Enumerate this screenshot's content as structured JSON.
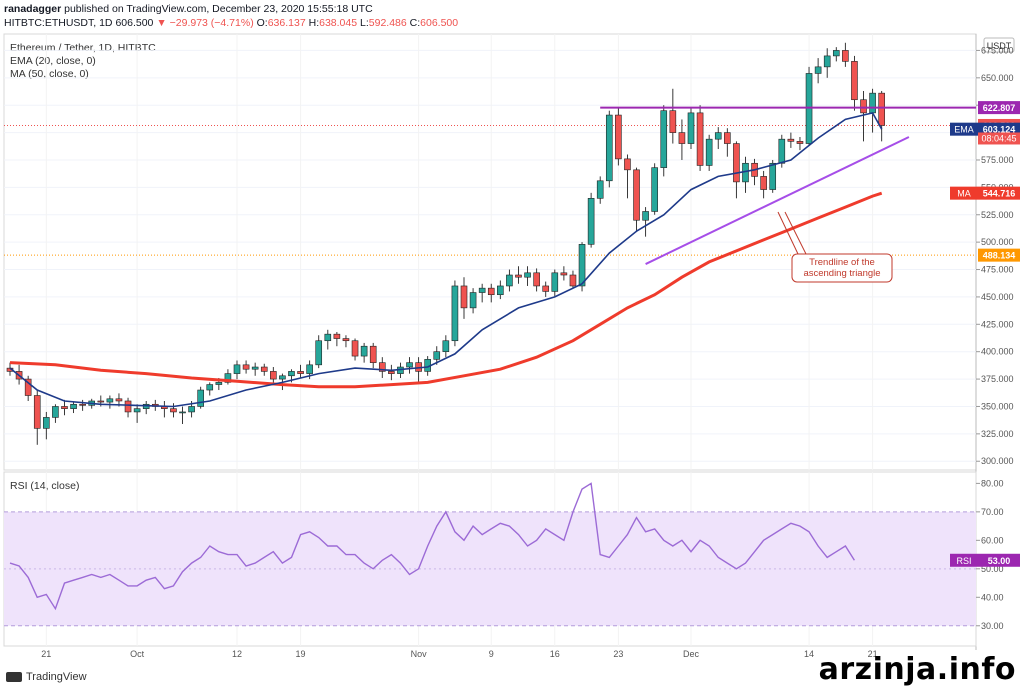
{
  "header": {
    "user": "ranadagger",
    "published": " published on TradingView.com, December 23, 2020 15:55:18 UTC",
    "symbol": "HITBTC:ETHUSDT, 1D",
    "price": "606.500",
    "change": "▼ −29.973 (−4.71%)",
    "ohlc": {
      "o_label": "O:",
      "o": "636.137",
      "h_label": "H:",
      "h": "638.045",
      "l_label": "L:",
      "l": "592.486",
      "c_label": "C:",
      "c": "606.500"
    }
  },
  "legend": {
    "title": "Ethereum / Tether, 1D, HITBTC",
    "ema": "EMA (20, close, 0)",
    "ma": "MA (50, close, 0)",
    "rsi": "RSI (14, close)"
  },
  "currency": "USDT",
  "annotation": "Trendline of the\nascending triangle",
  "watermark": "arzinja.info",
  "brand": "TradingView",
  "colors": {
    "up": "#26a69a",
    "down": "#ef5350",
    "ema": "#1e3a8a",
    "ma": "#ef3b2c",
    "resistance": "#9c27b0",
    "trend": "#a64ee8",
    "rsi": "#9c6bd6",
    "rsi_band": "#efe3fb"
  },
  "chart_data": [
    {
      "type": "candlestick",
      "y_ticks": [
        675,
        650,
        625,
        600,
        575,
        550,
        525,
        500,
        475,
        450,
        425,
        400,
        375,
        350,
        325,
        300
      ],
      "y_tick_labels": [
        "675.000",
        "650.000",
        "625.000",
        "600.000",
        "575.000",
        "550.000",
        "525.000",
        "500.000",
        "475.000",
        "450.000",
        "425.000",
        "400.000",
        "375.000",
        "350.000",
        "325.000",
        "300.000"
      ],
      "ylim": [
        292,
        690
      ],
      "x_tick_labels": [
        {
          "label": "21",
          "index": 4
        },
        {
          "label": "Oct",
          "index": 14
        },
        {
          "label": "12",
          "index": 25
        },
        {
          "label": "19",
          "index": 32
        },
        {
          "label": "Nov",
          "index": 45
        },
        {
          "label": "9",
          "index": 53
        },
        {
          "label": "16",
          "index": 60
        },
        {
          "label": "23",
          "index": 67
        },
        {
          "label": "Dec",
          "index": 75
        },
        {
          "label": "14",
          "index": 88
        },
        {
          "label": "21",
          "index": 95
        }
      ],
      "candles": [
        [
          385,
          390,
          378,
          382
        ],
        [
          382,
          388,
          370,
          375
        ],
        [
          375,
          378,
          355,
          360
        ],
        [
          360,
          365,
          315,
          330
        ],
        [
          330,
          345,
          320,
          340
        ],
        [
          340,
          352,
          335,
          350
        ],
        [
          350,
          356,
          342,
          348
        ],
        [
          348,
          354,
          344,
          352
        ],
        [
          352,
          356,
          346,
          351
        ],
        [
          351,
          357,
          348,
          355
        ],
        [
          355,
          360,
          350,
          354
        ],
        [
          354,
          360,
          348,
          357
        ],
        [
          357,
          362,
          350,
          355
        ],
        [
          355,
          358,
          340,
          345
        ],
        [
          345,
          352,
          335,
          348
        ],
        [
          348,
          355,
          343,
          352
        ],
        [
          352,
          356,
          346,
          350
        ],
        [
          350,
          355,
          340,
          348
        ],
        [
          348,
          353,
          340,
          345
        ],
        [
          345,
          350,
          334,
          345
        ],
        [
          345,
          355,
          340,
          350
        ],
        [
          350,
          368,
          348,
          365
        ],
        [
          365,
          372,
          360,
          370
        ],
        [
          370,
          376,
          365,
          372
        ],
        [
          372,
          384,
          370,
          380
        ],
        [
          380,
          392,
          375,
          388
        ],
        [
          388,
          392,
          380,
          384
        ],
        [
          384,
          390,
          378,
          386
        ],
        [
          386,
          389,
          378,
          382
        ],
        [
          382,
          386,
          370,
          375
        ],
        [
          375,
          380,
          365,
          378
        ],
        [
          378,
          384,
          372,
          382
        ],
        [
          382,
          388,
          376,
          380
        ],
        [
          380,
          392,
          375,
          388
        ],
        [
          388,
          415,
          385,
          410
        ],
        [
          410,
          420,
          402,
          416
        ],
        [
          416,
          418,
          405,
          412
        ],
        [
          412,
          415,
          404,
          410
        ],
        [
          410,
          412,
          392,
          396
        ],
        [
          396,
          408,
          390,
          405
        ],
        [
          405,
          408,
          385,
          390
        ],
        [
          390,
          395,
          376,
          382
        ],
        [
          382,
          388,
          374,
          380
        ],
        [
          380,
          390,
          376,
          386
        ],
        [
          386,
          395,
          380,
          390
        ],
        [
          390,
          395,
          372,
          382
        ],
        [
          382,
          396,
          378,
          393
        ],
        [
          393,
          405,
          388,
          400
        ],
        [
          400,
          415,
          395,
          410
        ],
        [
          410,
          465,
          405,
          460
        ],
        [
          460,
          468,
          430,
          440
        ],
        [
          440,
          458,
          435,
          454
        ],
        [
          454,
          462,
          445,
          458
        ],
        [
          458,
          462,
          445,
          452
        ],
        [
          452,
          465,
          448,
          460
        ],
        [
          460,
          475,
          455,
          470
        ],
        [
          470,
          478,
          462,
          468
        ],
        [
          468,
          478,
          460,
          472
        ],
        [
          472,
          476,
          455,
          460
        ],
        [
          460,
          464,
          450,
          455
        ],
        [
          455,
          475,
          450,
          472
        ],
        [
          472,
          478,
          465,
          470
        ],
        [
          470,
          474,
          458,
          460
        ],
        [
          460,
          500,
          455,
          498
        ],
        [
          498,
          545,
          495,
          540
        ],
        [
          540,
          560,
          535,
          556
        ],
        [
          556,
          620,
          550,
          616
        ],
        [
          616,
          622,
          570,
          576
        ],
        [
          576,
          580,
          540,
          566
        ],
        [
          566,
          568,
          510,
          520
        ],
        [
          520,
          532,
          505,
          528
        ],
        [
          528,
          572,
          525,
          568
        ],
        [
          568,
          625,
          560,
          620
        ],
        [
          620,
          640,
          590,
          600
        ],
        [
          600,
          612,
          575,
          590
        ],
        [
          590,
          622,
          585,
          618
        ],
        [
          618,
          625,
          565,
          570
        ],
        [
          570,
          598,
          565,
          594
        ],
        [
          594,
          605,
          585,
          600
        ],
        [
          600,
          604,
          578,
          590
        ],
        [
          590,
          592,
          540,
          555
        ],
        [
          555,
          578,
          545,
          572
        ],
        [
          572,
          576,
          552,
          560
        ],
        [
          560,
          565,
          540,
          548
        ],
        [
          548,
          575,
          545,
          572
        ],
        [
          572,
          598,
          568,
          594
        ],
        [
          594,
          600,
          586,
          592
        ],
        [
          592,
          596,
          584,
          590
        ],
        [
          590,
          660,
          588,
          654
        ],
        [
          654,
          668,
          645,
          660
        ],
        [
          660,
          677,
          650,
          670
        ],
        [
          670,
          678,
          665,
          675
        ],
        [
          675,
          682,
          660,
          665
        ],
        [
          665,
          670,
          620,
          630
        ],
        [
          630,
          638,
          592,
          618
        ],
        [
          618,
          640,
          600,
          636
        ],
        [
          636,
          638,
          592,
          606.5
        ]
      ],
      "ema_20": [
        [
          0,
          385
        ],
        [
          3,
          365
        ],
        [
          6,
          355
        ],
        [
          10,
          352
        ],
        [
          14,
          351
        ],
        [
          18,
          350
        ],
        [
          22,
          355
        ],
        [
          26,
          365
        ],
        [
          30,
          372
        ],
        [
          34,
          380
        ],
        [
          38,
          385
        ],
        [
          42,
          383
        ],
        [
          46,
          386
        ],
        [
          49,
          398
        ],
        [
          52,
          420
        ],
        [
          56,
          440
        ],
        [
          60,
          450
        ],
        [
          63,
          462
        ],
        [
          66,
          490
        ],
        [
          69,
          510
        ],
        [
          72,
          525
        ],
        [
          75,
          548
        ],
        [
          78,
          560
        ],
        [
          82,
          566
        ],
        [
          86,
          575
        ],
        [
          89,
          595
        ],
        [
          92,
          612
        ],
        [
          95,
          618
        ],
        [
          96,
          603.124
        ]
      ],
      "ma_50": [
        [
          0,
          390
        ],
        [
          5,
          388
        ],
        [
          10,
          383
        ],
        [
          15,
          380
        ],
        [
          20,
          376
        ],
        [
          25,
          373
        ],
        [
          30,
          370
        ],
        [
          34,
          368
        ],
        [
          38,
          368
        ],
        [
          42,
          370
        ],
        [
          46,
          372
        ],
        [
          50,
          378
        ],
        [
          54,
          384
        ],
        [
          58,
          395
        ],
        [
          62,
          410
        ],
        [
          65,
          425
        ],
        [
          68,
          440
        ],
        [
          71,
          452
        ],
        [
          74,
          468
        ],
        [
          77,
          482
        ],
        [
          80,
          492
        ],
        [
          83,
          502
        ],
        [
          86,
          512
        ],
        [
          89,
          522
        ],
        [
          92,
          532
        ],
        [
          95,
          542
        ],
        [
          96,
          544.716
        ]
      ],
      "price_labels": [
        {
          "value": 622.807,
          "label": "622.807",
          "bg": "#9c27b0"
        },
        {
          "value": 606.5,
          "label": "606.500",
          "bg": "#ef5350"
        },
        {
          "value": 603.124,
          "label": "603.124",
          "bg": "#1e3a8a",
          "tag": "EMA"
        },
        {
          "value": 544.716,
          "label": "544.716",
          "bg": "#ef3b2c",
          "tag": "MA"
        },
        {
          "value": 488.134,
          "label": "488.134",
          "bg": "#ff9800"
        }
      ],
      "countdown": "08:04:45",
      "resistance": {
        "value": 622.807,
        "from_index": 65,
        "to_index": 98
      },
      "trendline": {
        "from": [
          70,
          480
        ],
        "to": [
          99,
          596
        ]
      }
    },
    {
      "type": "line",
      "title": "RSI (14, close)",
      "ylim": [
        25,
        84
      ],
      "y_ticks": [
        80,
        70,
        60,
        50,
        40,
        30
      ],
      "y_tick_labels": [
        "80.00",
        "70.00",
        "60.00",
        "50.00",
        "40.00",
        "30.00"
      ],
      "band": [
        30,
        70
      ],
      "values": [
        52,
        51,
        47,
        40,
        41,
        36,
        45,
        46,
        47,
        48,
        47,
        48,
        46,
        44,
        44,
        46,
        47,
        43,
        44,
        49,
        52,
        54,
        58,
        56,
        55,
        55,
        51,
        52,
        54,
        56,
        52,
        54,
        62,
        63,
        61,
        58,
        58,
        55,
        55,
        52,
        50,
        53,
        55,
        52,
        48,
        50,
        58,
        65,
        70,
        63,
        60,
        65,
        62,
        64,
        66,
        65,
        62,
        58,
        60,
        64,
        62,
        60,
        70,
        78,
        80,
        55,
        54,
        58,
        62,
        68,
        63,
        64,
        60,
        58,
        60,
        56,
        60,
        58,
        54,
        52,
        50,
        52,
        56,
        60,
        62,
        64,
        66,
        65,
        63,
        58,
        54,
        56,
        58,
        53
      ],
      "current_label": "53.00",
      "tag": "RSI"
    }
  ]
}
